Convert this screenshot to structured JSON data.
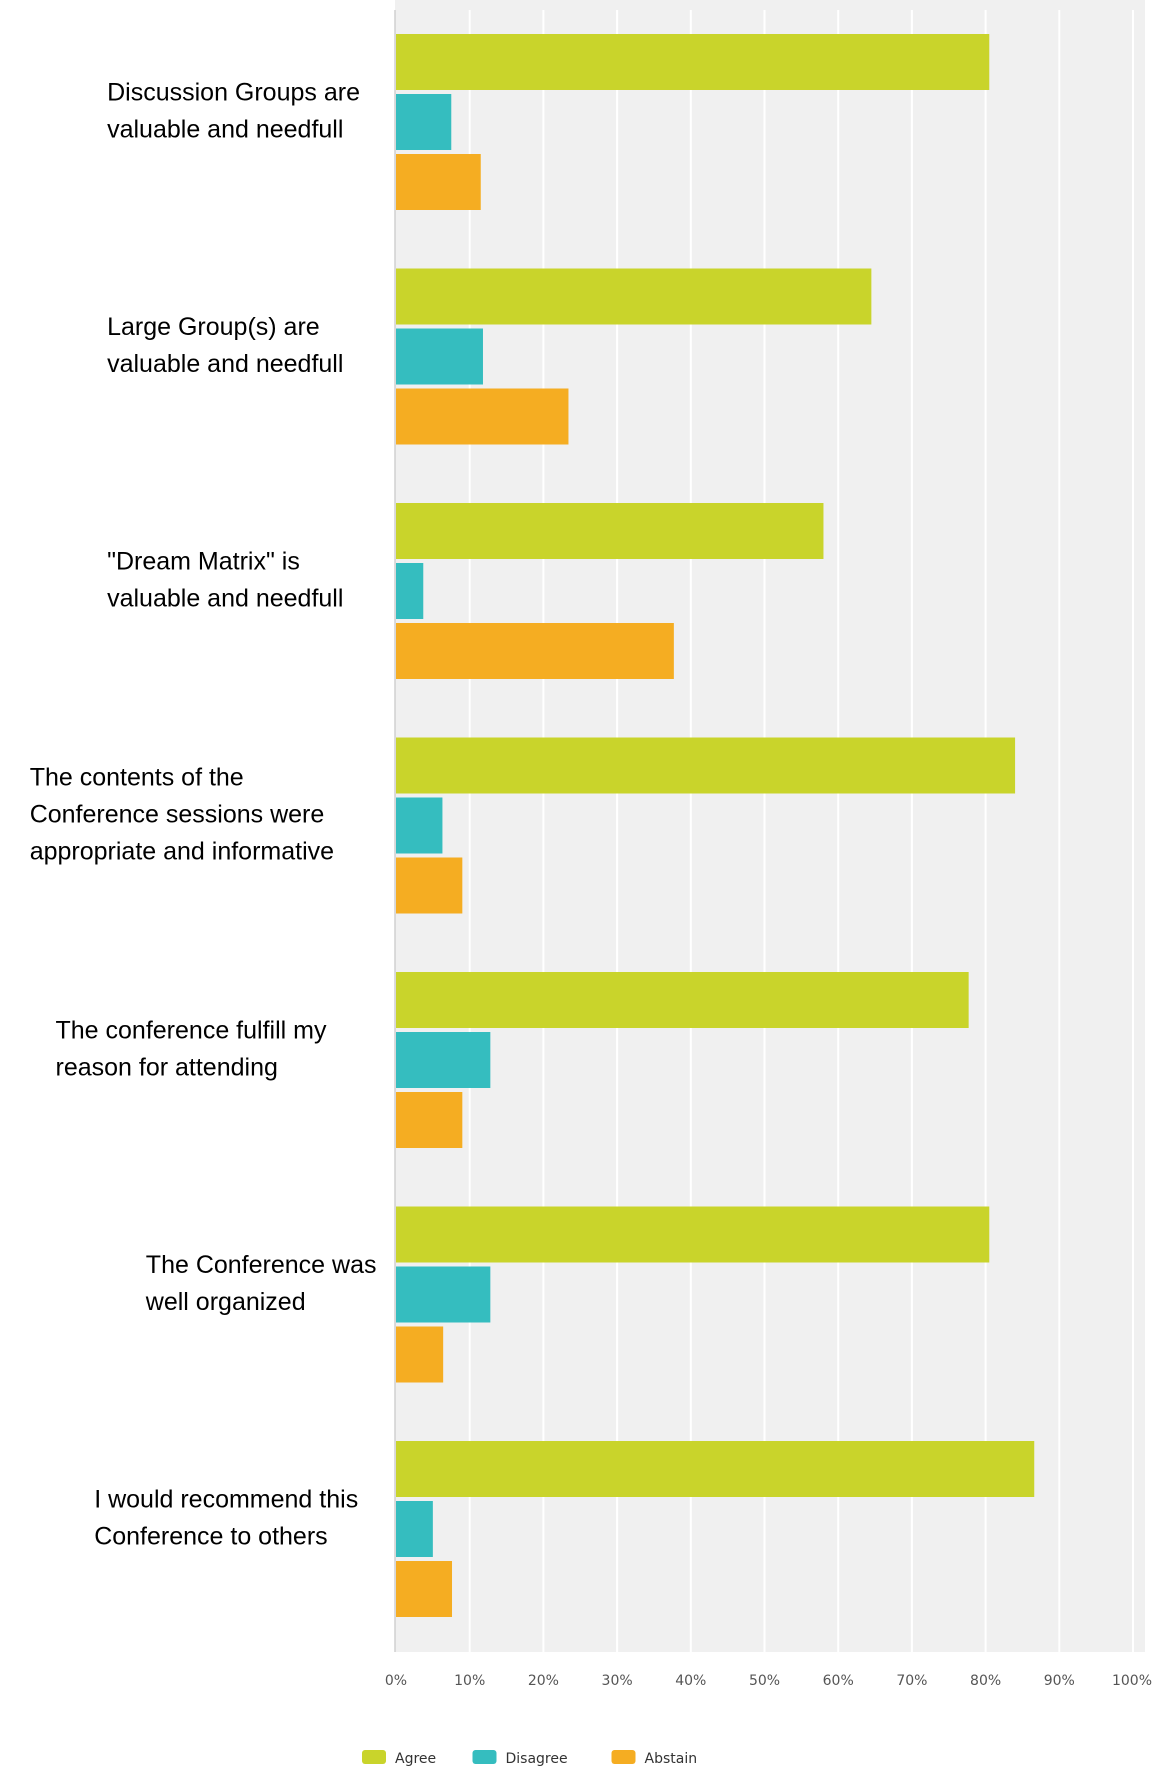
{
  "chart_data": {
    "type": "bar",
    "orientation": "horizontal",
    "title": "",
    "xlabel": "",
    "ylabel": "",
    "xlim": [
      0,
      100
    ],
    "grid": true,
    "legend_position": "bottom-center",
    "tick_labels": [
      "0%",
      "10%",
      "20%",
      "30%",
      "40%",
      "50%",
      "60%",
      "70%",
      "80%",
      "90%",
      "100%"
    ],
    "categories": [
      [
        "Discussion Groups are",
        "valuable and needfull"
      ],
      [
        "Large Group(s) are",
        "valuable and needfull"
      ],
      [
        "\"Dream Matrix\" is",
        "valuable and needfull"
      ],
      [
        "The contents of the",
        "Conference sessions were",
        "appropriate and informative"
      ],
      [
        "The conference fulfill my",
        "reason for attending"
      ],
      [
        "The Conference was",
        "well organized"
      ],
      [
        "I would recommend this",
        "Conference to others"
      ]
    ],
    "series": [
      {
        "name": "Agree",
        "color": "#c9d42b",
        "values": [
          80.5,
          64.5,
          58,
          84,
          77.7,
          80.5,
          86.6
        ]
      },
      {
        "name": "Disagree",
        "color": "#35bdbf",
        "values": [
          7.5,
          11.8,
          3.7,
          6.3,
          12.8,
          12.8,
          5
        ]
      },
      {
        "name": "Abstain",
        "color": "#f5ad22",
        "values": [
          11.5,
          23.4,
          37.7,
          9,
          9,
          6.4,
          7.6
        ]
      }
    ]
  }
}
